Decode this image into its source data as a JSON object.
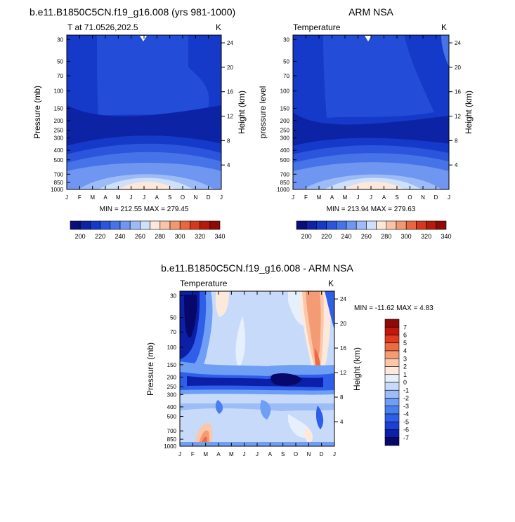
{
  "panels": [
    {
      "title": "b.e11.B1850C5CN.f19_g16.008 (yrs 981-1000)",
      "left_label": "T at 71.0526,202.5",
      "right_label": "K",
      "ylabel": "Pressure (mb)",
      "ylabel_right": "Height (km)",
      "min_max": "MIN = 212.55 MAX = 279.45"
    },
    {
      "title": "ARM NSA",
      "left_label": "Temperature",
      "right_label": "K",
      "ylabel": "pressure level",
      "ylabel_right": "Height (km)",
      "min_max": "MIN = 213.94 MAX = 279.63"
    },
    {
      "title": "b.e11.B1850C5CN.f19_g16.008 - ARM NSA",
      "left_label": "Temperature",
      "right_label": "K",
      "ylabel": "Pressure (mb)",
      "ylabel_right": "Height (km)",
      "min_max": "MIN = -11.62 MAX =   4.83"
    }
  ],
  "chart_data": [
    {
      "type": "heatmap",
      "title": "b.e11.B1850C5CN.f19_g16.008 (yrs 981-1000)",
      "subtitle": "T at 71.0526,202.5",
      "units": "K",
      "xlabel": "",
      "ylabel": "Pressure (mb)",
      "ylabel_right": "Height (km)",
      "x_ticks": [
        "J",
        "F",
        "M",
        "A",
        "M",
        "J",
        "J",
        "A",
        "S",
        "O",
        "N",
        "D",
        "J"
      ],
      "y_ticks": [
        30,
        50,
        70,
        100,
        150,
        200,
        250,
        300,
        400,
        500,
        700,
        850,
        1000
      ],
      "y_scale": "log",
      "y_right_ticks": [
        24,
        20,
        16,
        12,
        8,
        4
      ],
      "min": 212.55,
      "max": 279.45,
      "colorbar": {
        "orientation": "horizontal",
        "labels": [
          200,
          220,
          240,
          260,
          280,
          300,
          320,
          340
        ]
      },
      "approx_profile": {
        "pressure": [
          30,
          50,
          70,
          100,
          150,
          200,
          250,
          300,
          400,
          500,
          700,
          850,
          1000
        ],
        "value": [
          222,
          222,
          222,
          222,
          220,
          217,
          216,
          218,
          230,
          240,
          255,
          263,
          270
        ]
      }
    },
    {
      "type": "heatmap",
      "title": "ARM NSA",
      "subtitle": "Temperature",
      "units": "K",
      "xlabel": "",
      "ylabel": "pressure level",
      "ylabel_right": "Height (km)",
      "x_ticks": [
        "J",
        "F",
        "M",
        "A",
        "M",
        "J",
        "J",
        "A",
        "S",
        "O",
        "N",
        "D",
        "J"
      ],
      "y_ticks": [
        30,
        50,
        70,
        100,
        150,
        200,
        250,
        300,
        400,
        500,
        700,
        850,
        1000
      ],
      "y_scale": "log",
      "y_right_ticks": [
        24,
        20,
        16,
        12,
        8,
        4
      ],
      "min": 213.94,
      "max": 279.63,
      "colorbar": {
        "orientation": "horizontal",
        "labels": [
          200,
          220,
          240,
          260,
          280,
          300,
          320,
          340
        ]
      },
      "approx_profile": {
        "pressure": [
          30,
          50,
          70,
          100,
          150,
          200,
          250,
          300,
          400,
          500,
          700,
          850,
          1000
        ],
        "value": [
          222,
          222,
          222,
          222,
          220,
          218,
          217,
          219,
          230,
          240,
          255,
          264,
          271
        ]
      }
    },
    {
      "type": "heatmap",
      "title": "b.e11.B1850C5CN.f19_g16.008 - ARM NSA",
      "subtitle": "Temperature",
      "units": "K",
      "xlabel": "",
      "ylabel": "Pressure (mb)",
      "ylabel_right": "Height (km)",
      "x_ticks": [
        "J",
        "F",
        "M",
        "A",
        "M",
        "J",
        "J",
        "A",
        "S",
        "O",
        "N",
        "D",
        "J"
      ],
      "y_ticks": [
        30,
        50,
        70,
        100,
        150,
        200,
        250,
        300,
        400,
        500,
        700,
        850,
        1000
      ],
      "y_scale": "log",
      "y_right_ticks": [
        24,
        20,
        16,
        12,
        8,
        4
      ],
      "min": -11.62,
      "max": 4.83,
      "colorbar": {
        "orientation": "vertical",
        "labels": [
          7,
          6,
          5,
          4,
          3,
          2,
          1,
          0,
          -1,
          -2,
          -3,
          -4,
          -5,
          -6,
          -7
        ]
      }
    }
  ],
  "colors": {
    "diff_palette": [
      "#08086b",
      "#0b1fa8",
      "#1c3fd6",
      "#2f5fe8",
      "#4a7ff0",
      "#6f9ef5",
      "#9dbdf7",
      "#c7dafa",
      "#e6effc",
      "#fde9dc",
      "#fbc7aa",
      "#f59b74",
      "#ee6a43",
      "#e03a1f",
      "#c0180c",
      "#8e0a05"
    ],
    "temp_palette": [
      "#0a0d7a",
      "#0c23a6",
      "#1539c8",
      "#2a55dc",
      "#4674e8",
      "#6f96f0",
      "#9dbbf6",
      "#cfe0fb",
      "#fde8da",
      "#f8c4a6",
      "#f19870",
      "#e8673f",
      "#d6381b",
      "#b51a0b",
      "#8d0a05"
    ]
  }
}
